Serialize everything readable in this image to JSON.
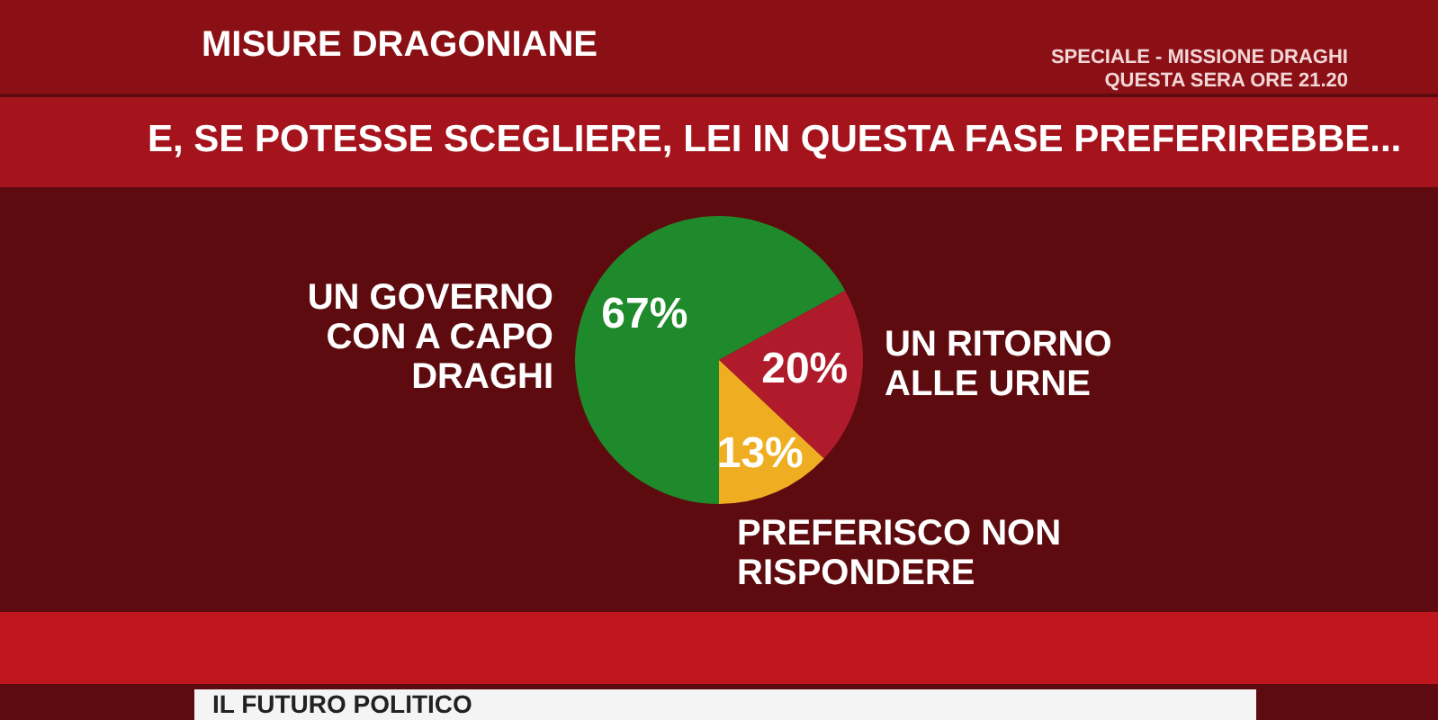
{
  "chart_data": {
    "type": "pie",
    "title": "E, SE POTESSE SCEGLIERE, LEI IN QUESTA FASE PREFERIREBBE...",
    "subtitle": "MISURE DRAGONIANE",
    "annotations": [
      "SPECIALE - MISSIONE DRAGHI",
      "QUESTA SERA ORE 21.20",
      "IL FUTURO POLITICO"
    ],
    "categories": [
      "UN GOVERNO CON A CAPO DRAGHI",
      "UN RITORNO ALLE URNE",
      "PREFERISCO NON RISPONDERE"
    ],
    "values": [
      67,
      20,
      13
    ],
    "value_labels": [
      "67%",
      "20%",
      "13%"
    ],
    "colors": [
      "#1f8a2b",
      "#b01b2b",
      "#efae22"
    ],
    "legend": false
  }
}
